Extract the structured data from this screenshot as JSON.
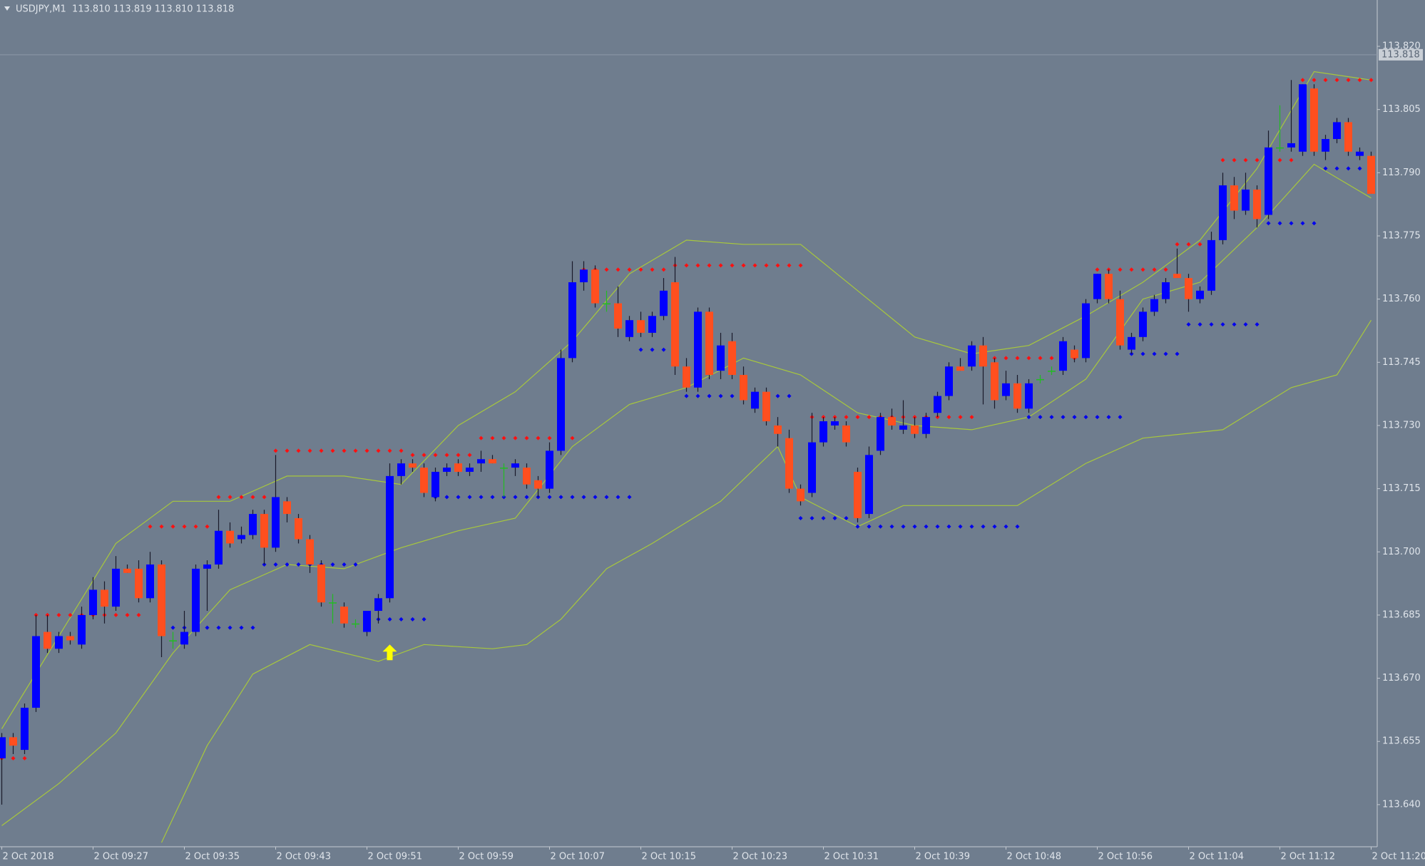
{
  "chart_data": {
    "type": "candlestick",
    "header": "USDJPY,M1  113.810 113.819 113.810 113.818",
    "categories": [
      "2 Oct 2018",
      null,
      null,
      null,
      null,
      null,
      null,
      null,
      "2 Oct 09:27",
      null,
      null,
      null,
      null,
      null,
      null,
      null,
      "2 Oct 09:35",
      null,
      null,
      null,
      null,
      null,
      null,
      null,
      "2 Oct 09:43",
      null,
      null,
      null,
      null,
      null,
      null,
      null,
      "2 Oct 09:51",
      null,
      null,
      null,
      null,
      null,
      null,
      null,
      "2 Oct 09:59",
      null,
      null,
      null,
      null,
      null,
      null,
      null,
      "2 Oct 10:07",
      null,
      null,
      null,
      null,
      null,
      null,
      null,
      "2 Oct 10:15",
      null,
      null,
      null,
      null,
      null,
      null,
      null,
      "2 Oct 10:23",
      null,
      null,
      null,
      null,
      null,
      null,
      null,
      "2 Oct 10:31",
      null,
      null,
      null,
      null,
      null,
      null,
      null,
      "2 Oct 10:39",
      null,
      null,
      null,
      null,
      null,
      null,
      null,
      "2 Oct 10:48",
      null,
      null,
      null,
      null,
      null,
      null,
      null,
      "2 Oct 10:56",
      null,
      null,
      null,
      null,
      null,
      null,
      null,
      "2 Oct 11:04",
      null,
      null,
      null,
      null,
      null,
      null,
      null,
      "2 Oct 11:12",
      null,
      null,
      null,
      null,
      null,
      null,
      null,
      "2 Oct 11:20"
    ],
    "open": [
      113.651,
      113.656,
      113.653,
      113.663,
      113.681,
      113.677,
      113.68,
      113.678,
      113.685,
      113.691,
      113.687,
      113.696,
      113.696,
      113.689,
      113.697,
      113.679,
      113.678,
      113.681,
      113.696,
      113.697,
      113.705,
      113.703,
      113.704,
      113.709,
      113.701,
      113.712,
      113.708,
      113.703,
      113.697,
      113.688,
      113.687,
      113.683,
      113.681,
      113.686,
      113.689,
      113.718,
      113.721,
      113.72,
      113.713,
      113.719,
      113.721,
      113.719,
      113.721,
      113.722,
      113.72,
      113.72,
      113.72,
      113.717,
      113.715,
      113.724,
      113.746,
      113.764,
      113.767,
      113.759,
      113.759,
      113.751,
      113.755,
      113.752,
      113.756,
      113.764,
      113.744,
      113.739,
      113.757,
      113.743,
      113.75,
      113.742,
      113.734,
      113.738,
      113.73,
      113.727,
      113.715,
      113.714,
      113.726,
      113.73,
      113.73,
      113.719,
      113.709,
      113.724,
      113.732,
      113.729,
      113.73,
      113.728,
      113.733,
      113.737,
      113.744,
      113.744,
      113.749,
      113.745,
      113.737,
      113.74,
      113.734,
      113.741,
      113.743,
      113.743,
      113.748,
      113.746,
      113.76,
      113.766,
      113.76,
      113.748,
      113.751,
      113.757,
      113.76,
      113.766,
      113.765,
      113.76,
      113.762,
      113.774,
      113.787,
      113.781,
      113.786,
      113.78,
      113.796,
      113.796,
      113.795,
      113.81,
      113.795,
      113.798,
      113.802,
      113.794,
      113.794
    ],
    "high": [
      113.657,
      113.657,
      113.664,
      113.685,
      113.685,
      113.681,
      113.681,
      113.687,
      113.694,
      113.693,
      113.699,
      113.697,
      113.698,
      113.7,
      113.698,
      113.681,
      113.686,
      113.697,
      113.698,
      113.71,
      113.707,
      113.706,
      113.71,
      113.71,
      113.723,
      113.713,
      113.709,
      113.704,
      113.698,
      113.69,
      113.688,
      113.684,
      113.686,
      113.69,
      113.721,
      113.722,
      113.722,
      113.721,
      113.72,
      113.721,
      113.722,
      113.721,
      113.724,
      113.723,
      113.721,
      113.722,
      113.721,
      113.718,
      113.726,
      113.748,
      113.769,
      113.769,
      113.768,
      113.762,
      113.763,
      113.756,
      113.757,
      113.757,
      113.765,
      113.77,
      113.746,
      113.758,
      113.758,
      113.752,
      113.752,
      113.744,
      113.739,
      113.739,
      113.732,
      113.729,
      113.716,
      113.733,
      113.732,
      113.732,
      113.731,
      113.72,
      113.725,
      113.733,
      113.734,
      113.736,
      113.732,
      113.733,
      113.738,
      113.745,
      113.746,
      113.75,
      113.751,
      113.746,
      113.743,
      113.742,
      113.741,
      113.742,
      113.744,
      113.751,
      113.749,
      113.76,
      113.766,
      113.767,
      113.762,
      113.752,
      113.758,
      113.761,
      113.765,
      113.772,
      113.766,
      113.763,
      113.776,
      113.79,
      113.789,
      113.79,
      113.787,
      113.8,
      113.806,
      113.812,
      113.811,
      113.811,
      113.799,
      113.803,
      113.803,
      113.796,
      113.795
    ],
    "low": [
      113.64,
      113.652,
      113.652,
      113.662,
      113.676,
      113.676,
      113.678,
      113.677,
      113.684,
      113.683,
      113.686,
      113.695,
      113.688,
      113.688,
      113.675,
      113.677,
      113.677,
      113.68,
      113.686,
      113.696,
      113.701,
      113.702,
      113.703,
      113.697,
      113.7,
      113.707,
      113.702,
      113.695,
      113.687,
      113.683,
      113.682,
      113.682,
      113.68,
      113.683,
      113.688,
      113.716,
      113.719,
      113.713,
      113.712,
      113.718,
      113.718,
      113.718,
      113.719,
      113.721,
      113.713,
      113.718,
      113.715,
      113.713,
      113.714,
      113.723,
      113.745,
      113.762,
      113.758,
      113.757,
      113.751,
      113.75,
      113.751,
      113.751,
      113.755,
      113.742,
      113.738,
      113.738,
      113.741,
      113.741,
      113.741,
      113.735,
      113.733,
      113.73,
      113.725,
      113.714,
      113.711,
      113.713,
      113.725,
      113.729,
      113.725,
      113.707,
      113.708,
      113.723,
      113.729,
      113.728,
      113.727,
      113.727,
      113.732,
      113.736,
      113.743,
      113.743,
      113.735,
      113.734,
      113.736,
      113.733,
      113.733,
      113.74,
      113.742,
      113.742,
      113.745,
      113.745,
      113.759,
      113.759,
      113.748,
      113.747,
      113.75,
      113.756,
      113.759,
      113.765,
      113.757,
      113.759,
      113.761,
      113.773,
      113.779,
      113.78,
      113.777,
      113.779,
      113.795,
      113.795,
      113.794,
      113.794,
      113.793,
      113.797,
      113.794,
      113.793,
      113.785
    ],
    "close": [
      113.656,
      113.654,
      113.663,
      113.68,
      113.677,
      113.68,
      113.679,
      113.685,
      113.691,
      113.687,
      113.696,
      113.695,
      113.689,
      113.697,
      113.68,
      113.679,
      113.681,
      113.696,
      113.697,
      113.705,
      113.702,
      113.704,
      113.709,
      113.701,
      113.713,
      113.709,
      113.703,
      113.697,
      113.688,
      113.688,
      113.683,
      113.683,
      113.686,
      113.689,
      113.718,
      113.721,
      113.72,
      113.714,
      113.719,
      113.72,
      113.719,
      113.72,
      113.722,
      113.721,
      113.72,
      113.721,
      113.716,
      113.715,
      113.724,
      113.746,
      113.764,
      113.767,
      113.759,
      113.759,
      113.753,
      113.755,
      113.752,
      113.756,
      113.762,
      113.744,
      113.739,
      113.757,
      113.742,
      113.749,
      113.742,
      113.736,
      113.738,
      113.731,
      113.728,
      113.715,
      113.712,
      113.726,
      113.731,
      113.731,
      113.726,
      113.708,
      113.723,
      113.732,
      113.73,
      113.73,
      113.728,
      113.732,
      113.737,
      113.744,
      113.743,
      113.749,
      113.744,
      113.736,
      113.74,
      113.734,
      113.74,
      113.741,
      113.743,
      113.75,
      113.746,
      113.759,
      113.766,
      113.76,
      113.749,
      113.751,
      113.757,
      113.76,
      113.764,
      113.765,
      113.76,
      113.762,
      113.774,
      113.787,
      113.781,
      113.786,
      113.779,
      113.796,
      113.796,
      113.797,
      113.811,
      113.795,
      113.798,
      113.802,
      113.795,
      113.795,
      113.785
    ],
    "bull_color": "#0000ff",
    "bear_color": "#ff4f1f",
    "doji_color": "#22bb22",
    "bands": [
      {
        "x": [
          0,
          5,
          10,
          15,
          20,
          25,
          30,
          35,
          40,
          45,
          50,
          55,
          60,
          65,
          70,
          75,
          80,
          85,
          90,
          95,
          100,
          105,
          110,
          115,
          120
        ],
        "values": [
          113.658,
          113.68,
          113.702,
          113.712,
          113.712,
          113.718,
          113.718,
          113.716,
          113.73,
          113.738,
          113.75,
          113.766,
          113.774,
          113.773,
          113.773,
          113.762,
          113.751,
          113.747,
          113.749,
          113.756,
          113.764,
          113.774,
          113.791,
          113.814,
          113.812
        ]
      },
      {
        "x": [
          0,
          5,
          10,
          15,
          20,
          25,
          30,
          35,
          40,
          45,
          50,
          55,
          60,
          65,
          70,
          75,
          80,
          85,
          90,
          95,
          100,
          105,
          110,
          115,
          120
        ],
        "values": [
          113.635,
          113.645,
          113.657,
          113.676,
          113.691,
          113.697,
          113.696,
          113.701,
          113.705,
          113.708,
          113.725,
          113.735,
          113.739,
          113.746,
          113.742,
          113.733,
          113.73,
          113.729,
          113.732,
          113.741,
          113.76,
          113.764,
          113.777,
          113.792,
          113.784
        ]
      },
      {
        "x": [
          14,
          18,
          22,
          27,
          33,
          37,
          43,
          46,
          49,
          53,
          57,
          63,
          68,
          70,
          75,
          79,
          89,
          95,
          100,
          107,
          110,
          113,
          117,
          120
        ],
        "values": [
          113.631,
          113.654,
          113.671,
          113.678,
          113.674,
          113.678,
          113.677,
          113.678,
          113.684,
          113.696,
          113.702,
          113.712,
          113.725,
          113.713,
          113.706,
          113.711,
          113.711,
          113.721,
          113.727,
          113.729,
          113.734,
          113.739,
          113.742,
          113.755
        ]
      }
    ],
    "band_color": "#a8c83c",
    "resistance_levels": [
      {
        "start": 0,
        "end": 2,
        "value": 113.651
      },
      {
        "start": 3,
        "end": 12,
        "value": 113.685
      },
      {
        "start": 13,
        "end": 18,
        "value": 113.706
      },
      {
        "start": 19,
        "end": 23,
        "value": 113.713
      },
      {
        "start": 24,
        "end": 35,
        "value": 113.724
      },
      {
        "start": 36,
        "end": 41,
        "value": 113.723
      },
      {
        "start": 42,
        "end": 50,
        "value": 113.727
      },
      {
        "start": 51,
        "end": 58,
        "value": 113.767
      },
      {
        "start": 59,
        "end": 70,
        "value": 113.768
      },
      {
        "start": 71,
        "end": 85,
        "value": 113.732
      },
      {
        "start": 86,
        "end": 94,
        "value": 113.746
      },
      {
        "start": 96,
        "end": 102,
        "value": 113.767
      },
      {
        "start": 103,
        "end": 106,
        "value": 113.773
      },
      {
        "start": 107,
        "end": 113,
        "value": 113.793
      },
      {
        "start": 114,
        "end": 120,
        "value": 113.812
      }
    ],
    "support_levels": [
      {
        "start": 14,
        "end": 22,
        "value": 113.682
      },
      {
        "start": 23,
        "end": 31,
        "value": 113.697
      },
      {
        "start": 32,
        "end": 37,
        "value": 113.684
      },
      {
        "start": 38,
        "end": 55,
        "value": 113.713
      },
      {
        "start": 56,
        "end": 59,
        "value": 113.748
      },
      {
        "start": 60,
        "end": 69,
        "value": 113.737
      },
      {
        "start": 70,
        "end": 74,
        "value": 113.708
      },
      {
        "start": 75,
        "end": 89,
        "value": 113.706
      },
      {
        "start": 90,
        "end": 98,
        "value": 113.732
      },
      {
        "start": 99,
        "end": 103,
        "value": 113.747
      },
      {
        "start": 104,
        "end": 110,
        "value": 113.754
      },
      {
        "start": 111,
        "end": 115,
        "value": 113.778
      },
      {
        "start": 116,
        "end": 119,
        "value": 113.791
      }
    ],
    "resistance_color": "#ff1010",
    "support_color": "#0000ee",
    "arrows": [
      {
        "index": 34,
        "value": 113.678
      }
    ],
    "arrow_color": "#ffff00",
    "current_price": 113.818,
    "ylim": [
      113.63,
      113.831
    ],
    "yticks": [
      {
        "value": 113.82,
        "label": "113.820"
      },
      113.805,
      {
        "value": 113.79,
        "label": "113.790"
      },
      113.775,
      {
        "value": 113.76,
        "label": "113.760"
      },
      113.745,
      {
        "value": 113.73,
        "label": "113.730"
      },
      113.715,
      {
        "value": 113.7,
        "label": "113.700"
      },
      113.685,
      {
        "value": 113.67,
        "label": "113.670"
      },
      113.655,
      {
        "value": 113.64,
        "label": "113.640"
      }
    ]
  }
}
